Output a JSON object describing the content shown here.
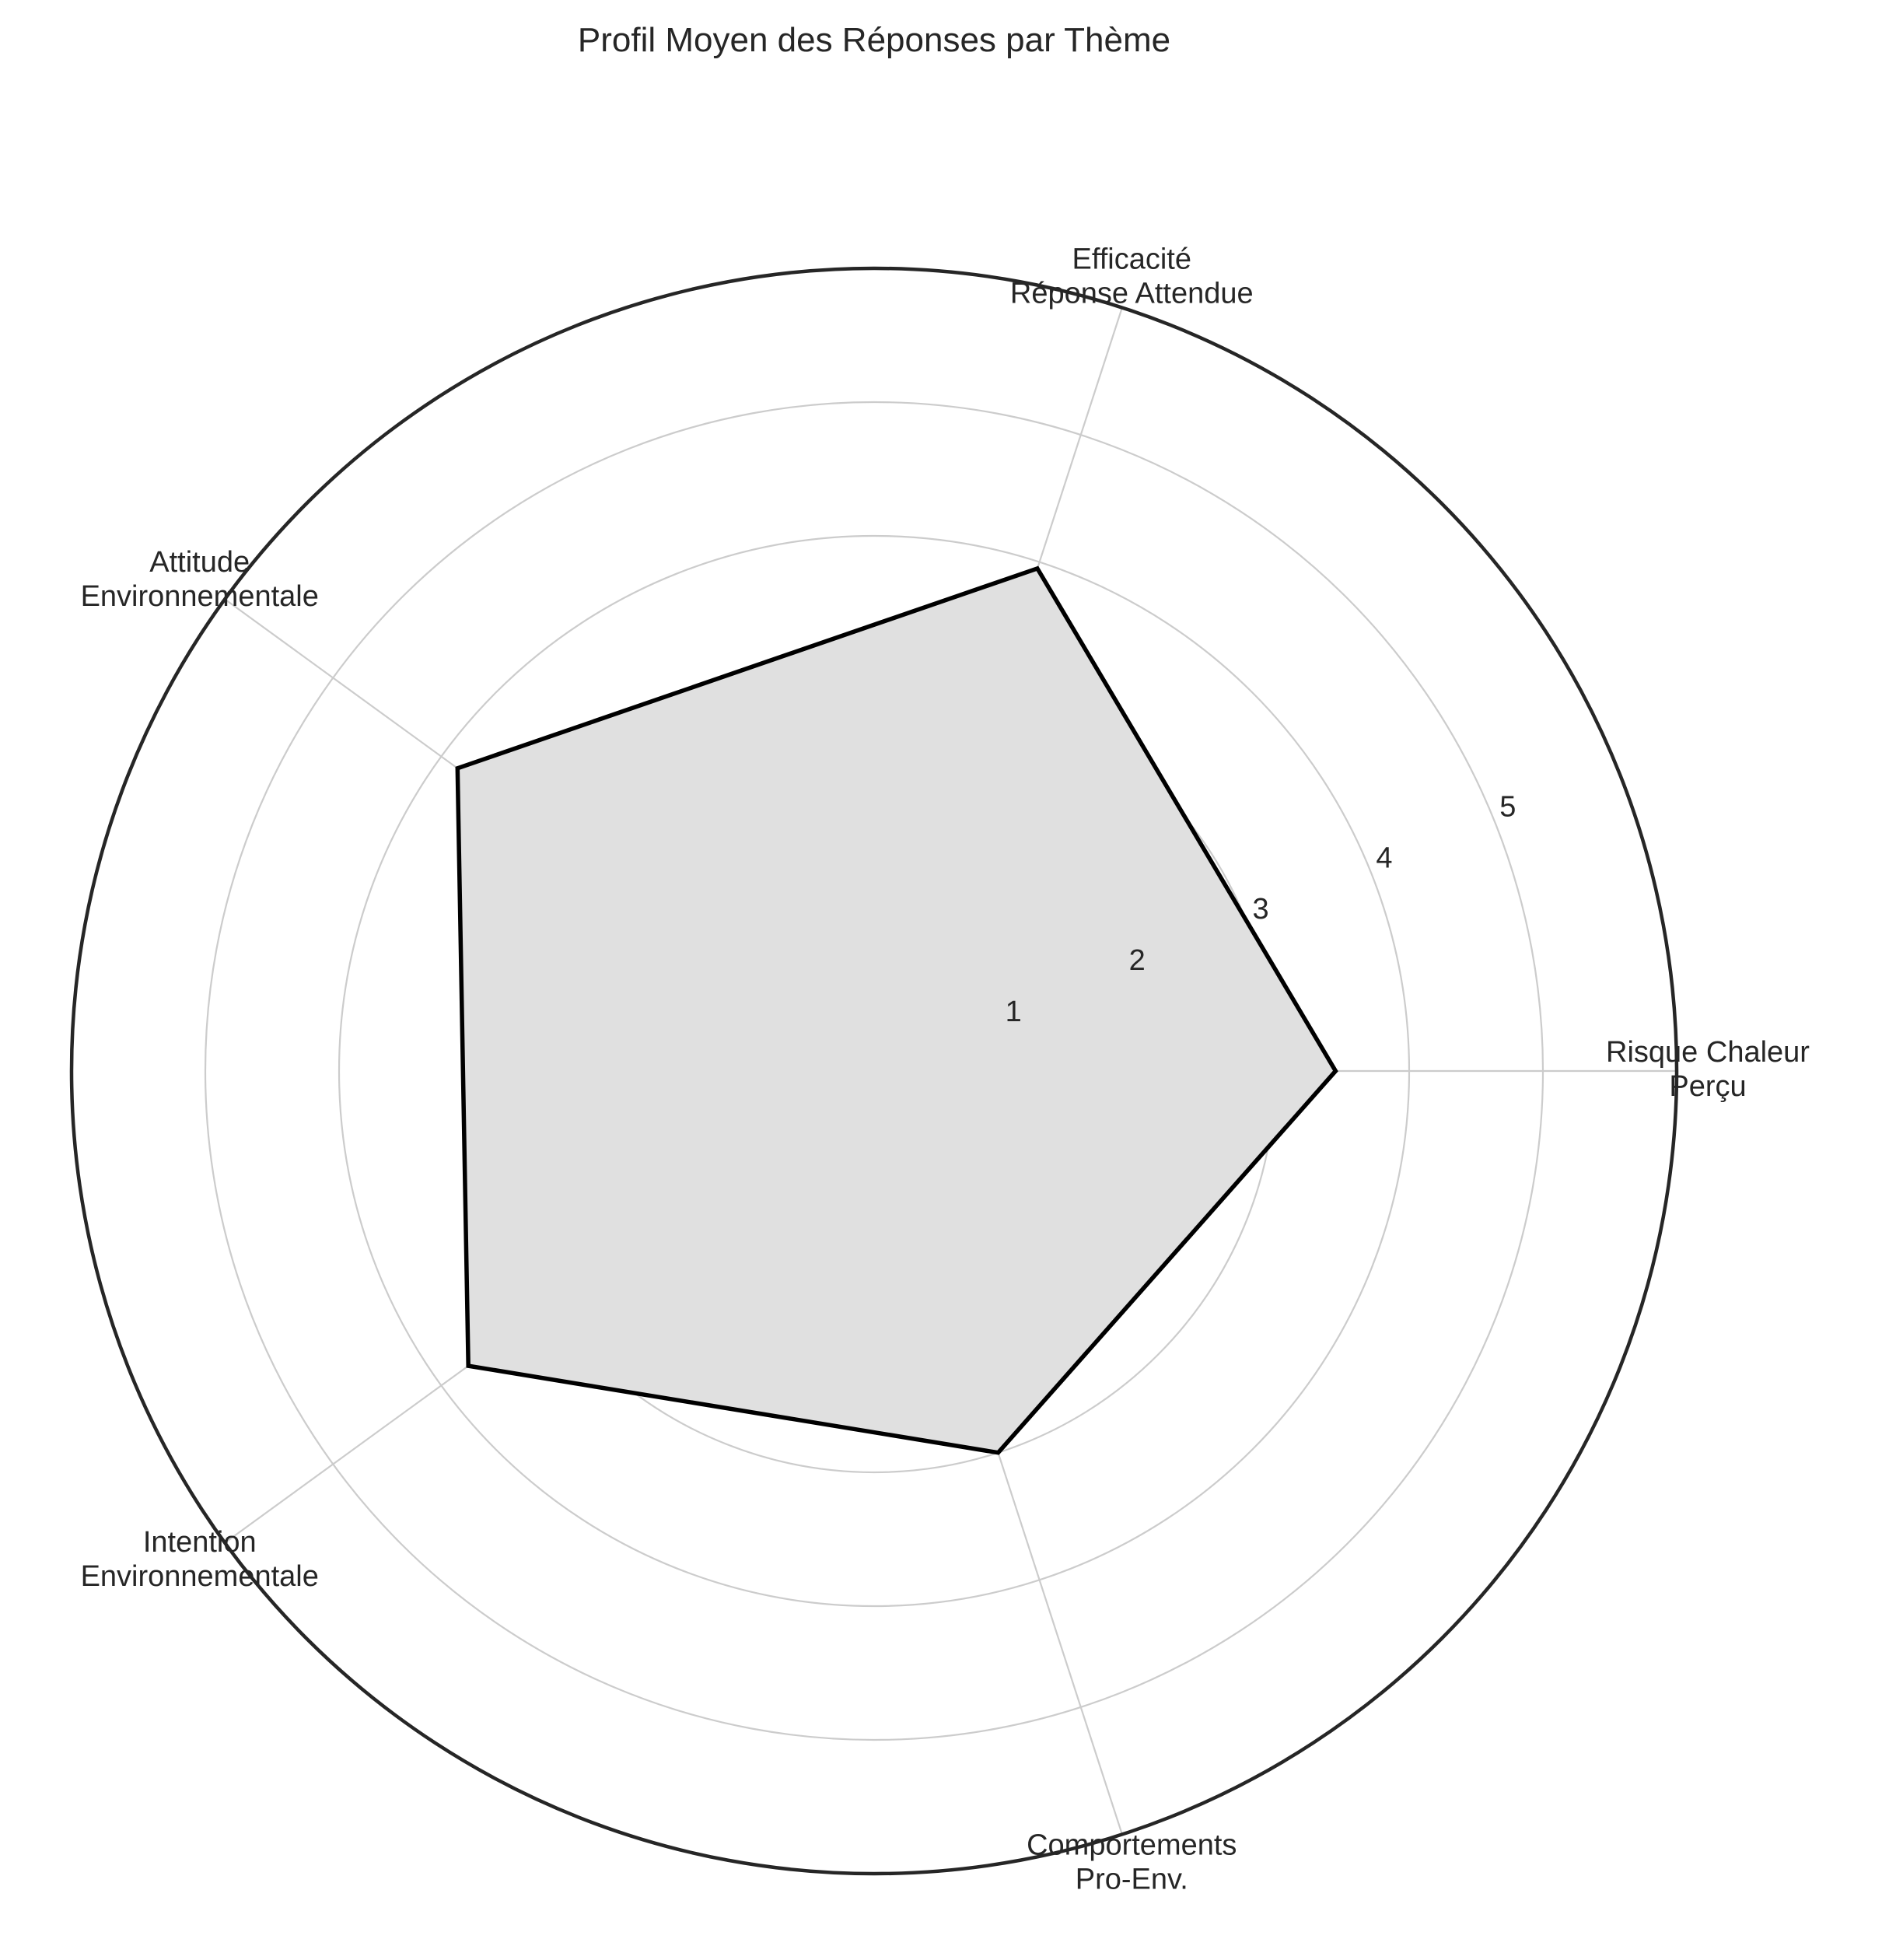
{
  "chart_data": {
    "type": "radar",
    "title": "Profil Moyen des Réponses par Thème",
    "categories": [
      [
        "Risque Chaleur",
        "Perçu"
      ],
      [
        "Efficacité",
        "Réponse Attendue"
      ],
      [
        "Attitude",
        "Environnementale"
      ],
      [
        "Intention",
        "Environnementale"
      ],
      [
        "Comportements",
        "Pro-Env."
      ]
    ],
    "series": [
      {
        "values": [
          3.45,
          3.95,
          3.85,
          3.75,
          3.0
        ]
      }
    ],
    "rlim": [
      0,
      6
    ],
    "r_ticks": [
      1,
      2,
      3,
      4,
      5
    ],
    "r_tick_labels": [
      "1",
      "2",
      "3",
      "4",
      "5"
    ],
    "grid": true,
    "colors": {
      "line": "#000000",
      "fill": "#e0e0e0",
      "grid": "#cccccc",
      "frame": "#262626",
      "text": "#262626"
    }
  }
}
